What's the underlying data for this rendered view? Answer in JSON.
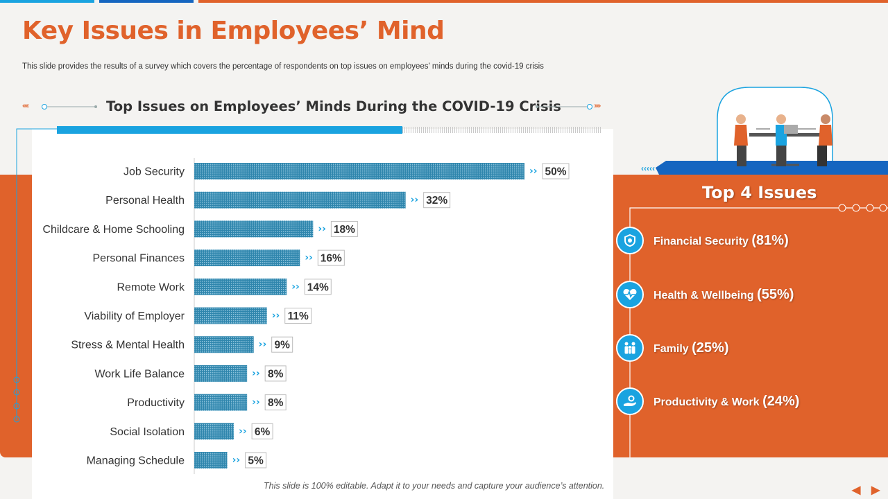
{
  "title": "Key Issues in Employees’ Mind",
  "subtitle": "This slide provides the results of a survey which covers the percentage of respondents on top issues on employees’ minds during the covid-19 crisis",
  "footer": "This slide is 100% editable. Adapt it to your needs and capture your audience’s attention.",
  "colors": {
    "accent": "#e0622b",
    "blue": "#1aa3e0",
    "bar": "#3b8fb5"
  },
  "chart_data": {
    "type": "bar",
    "orientation": "horizontal",
    "title": "Top Issues on Employees’ Minds During the COVID-19 Crisis",
    "categories": [
      "Job Security",
      "Personal Health",
      "Childcare & Home Schooling",
      "Personal Finances",
      "Remote Work",
      "Viability of Employer",
      "Stress & Mental Health",
      "Work Life Balance",
      "Productivity",
      "Social Isolation",
      "Managing Schedule"
    ],
    "values": [
      50,
      32,
      18,
      16,
      14,
      11,
      9,
      8,
      8,
      6,
      5
    ],
    "value_labels": [
      "50%",
      "32%",
      "18%",
      "16%",
      "14%",
      "11%",
      "9%",
      "8%",
      "8%",
      "6%",
      "5%"
    ],
    "xlim": [
      0,
      50
    ],
    "unit": "%"
  },
  "top_issues": {
    "title": "Top 4 Issues",
    "items": [
      {
        "label": "Financial Security",
        "pct": "(81%)",
        "icon": "shield-dollar-icon"
      },
      {
        "label": "Health & Wellbeing",
        "pct": "(55%)",
        "icon": "heart-pulse-icon"
      },
      {
        "label": "Family",
        "pct": "(25%)",
        "icon": "family-icon"
      },
      {
        "label": "Productivity & Work",
        "pct": "(24%)",
        "icon": "hand-gear-icon"
      }
    ]
  }
}
